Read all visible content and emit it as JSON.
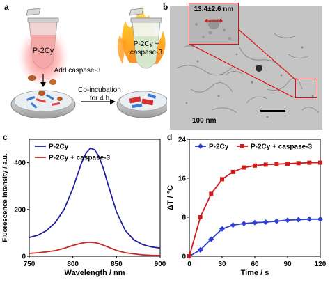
{
  "panels": {
    "a": {
      "label": "a",
      "tube_left_label": "P-2Cy",
      "tube_right_label_line1": "P-2Cy +",
      "tube_right_label_line2": "caspase-3",
      "add_label": "Add caspase-3",
      "incubation_line1": "Co-incubation",
      "incubation_line2": "for 4 h"
    },
    "b": {
      "label": "b",
      "inset_size": "13.4±2.6 nm",
      "scale_bar": "100 nm"
    },
    "c": {
      "label": "c"
    },
    "d": {
      "label": "d"
    }
  },
  "chart_data": [
    {
      "type": "line",
      "panel": "c",
      "xlabel": "Wavelength / nm",
      "ylabel": "Fluorescence intensity / a.u.",
      "xlim": [
        750,
        900
      ],
      "ylim": [
        0,
        500
      ],
      "xticks": [
        750,
        800,
        850,
        900
      ],
      "yticks": [
        0,
        200,
        400
      ],
      "legend_position": "top-left",
      "x": [
        750,
        760,
        770,
        780,
        790,
        800,
        805,
        810,
        815,
        820,
        825,
        830,
        835,
        840,
        850,
        860,
        870,
        880,
        890,
        900
      ],
      "series": [
        {
          "name": "P-2Cy",
          "color": "#1f1f9e",
          "values": [
            80,
            90,
            110,
            145,
            200,
            290,
            345,
            400,
            440,
            462,
            455,
            425,
            375,
            310,
            190,
            110,
            70,
            50,
            40,
            35
          ]
        },
        {
          "name": "P-2Cy + caspase-3",
          "color": "#c62828",
          "values": [
            12,
            15,
            19,
            24,
            34,
            46,
            51,
            56,
            59,
            60,
            58,
            54,
            47,
            40,
            25,
            15,
            10,
            6,
            4,
            3
          ]
        }
      ]
    },
    {
      "type": "line",
      "panel": "d",
      "xlabel": "Time / s",
      "ylabel": "ΔT / °C",
      "xlim": [
        0,
        120
      ],
      "ylim": [
        0,
        24
      ],
      "xticks": [
        0,
        30,
        60,
        90,
        120
      ],
      "yticks": [
        0,
        8,
        16,
        24
      ],
      "legend_position": "top",
      "x": [
        0,
        10,
        20,
        30,
        40,
        50,
        60,
        70,
        80,
        90,
        100,
        110,
        120
      ],
      "series": [
        {
          "name": "P-2Cy",
          "color": "#2e3fd6",
          "marker": "diamond",
          "values": [
            0,
            1.3,
            3.5,
            5.6,
            6.4,
            6.7,
            6.9,
            7.0,
            7.2,
            7.4,
            7.5,
            7.6,
            7.6
          ]
        },
        {
          "name": "P-2Cy + caspase-3",
          "color": "#d11a1a",
          "marker": "square",
          "values": [
            0,
            8.0,
            12.8,
            15.8,
            17.3,
            18.2,
            18.6,
            18.8,
            18.9,
            19.0,
            19.1,
            19.2,
            19.2
          ]
        }
      ]
    }
  ]
}
